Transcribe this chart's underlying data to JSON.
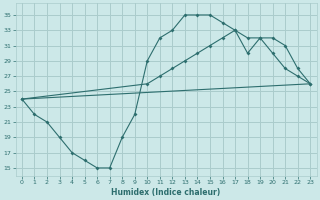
{
  "xlabel": "Humidex (Indice chaleur)",
  "background_color": "#cce8e8",
  "grid_color": "#aacccc",
  "line_color": "#2d6e6e",
  "xlim": [
    -0.5,
    23.5
  ],
  "ylim": [
    14.0,
    36.5
  ],
  "yticks": [
    15,
    17,
    19,
    21,
    23,
    25,
    27,
    29,
    31,
    33,
    35
  ],
  "xticks": [
    0,
    1,
    2,
    3,
    4,
    5,
    6,
    7,
    8,
    9,
    10,
    11,
    12,
    13,
    14,
    15,
    16,
    17,
    18,
    19,
    20,
    21,
    22,
    23
  ],
  "line1_x": [
    0,
    1,
    2,
    3,
    4,
    5,
    6,
    7,
    8,
    9,
    10,
    11,
    12,
    13,
    14,
    15,
    16,
    17,
    18,
    19,
    20,
    21,
    22,
    23
  ],
  "line1_y": [
    24,
    22,
    21,
    19,
    17,
    16,
    15,
    15,
    19,
    22,
    29,
    32,
    33,
    35,
    35,
    35,
    34,
    33,
    30,
    32,
    30,
    28,
    27,
    26
  ],
  "line1_marker_x": [
    0,
    1,
    2,
    3,
    4,
    5,
    6,
    7,
    8,
    9,
    10,
    11,
    12,
    13,
    14,
    15,
    16,
    17,
    18,
    19,
    20,
    21,
    22,
    23
  ],
  "line2_x": [
    0,
    10,
    11,
    12,
    13,
    14,
    15,
    16,
    17,
    18,
    19,
    20,
    21,
    22,
    23
  ],
  "line2_y": [
    24,
    26,
    27,
    28,
    29,
    30,
    31,
    32,
    33,
    32,
    32,
    32,
    31,
    28,
    26
  ],
  "line3_x": [
    0,
    23
  ],
  "line3_y": [
    24,
    26
  ]
}
